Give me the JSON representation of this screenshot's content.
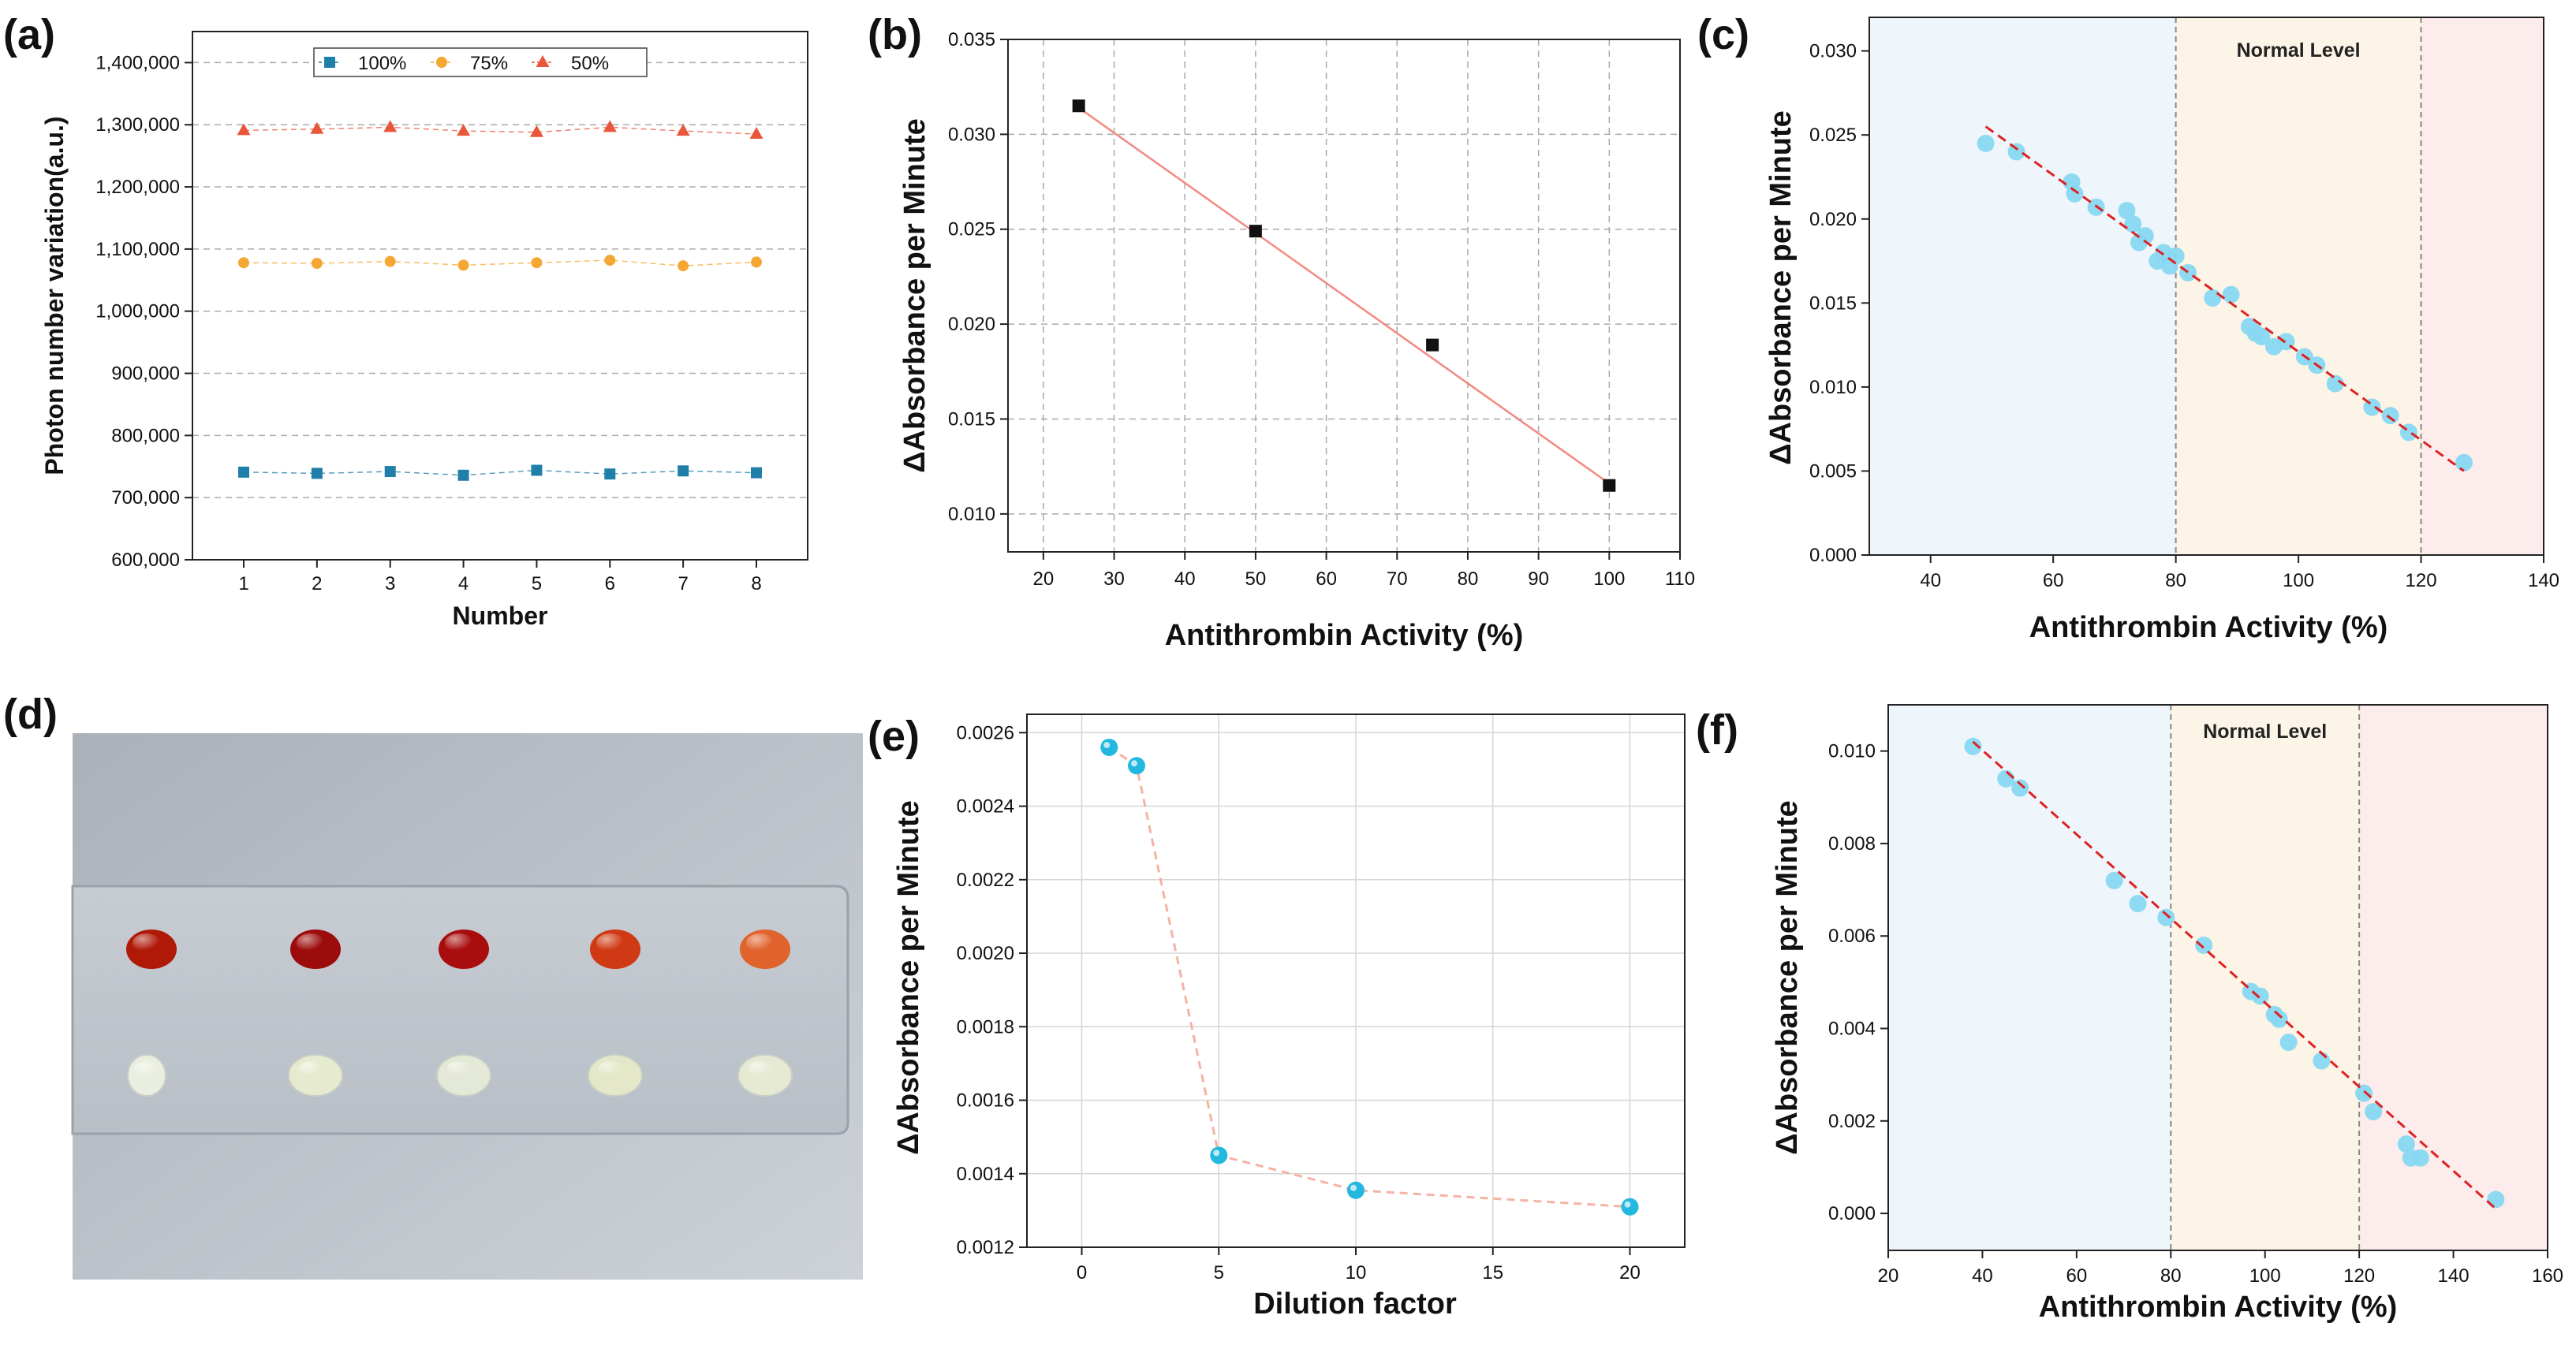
{
  "colors": {
    "blue": "#1f7fa8",
    "orange": "#f5a733",
    "red": "#e8573a",
    "cyan": "#88d8f2",
    "cyan_dark": "#22b8e0",
    "fit_red": "#dd2222",
    "zone_low": "#eef5fb",
    "zone_normal": "#fcf4e6",
    "zone_high": "#fcecec"
  },
  "chart_data": [
    {
      "panel": "(a)",
      "type": "line",
      "xlabel": "Number",
      "ylabel": "Photon number variation(a.u.)",
      "x": [
        1,
        2,
        3,
        4,
        5,
        6,
        7,
        8
      ],
      "xlim": [
        0.3,
        8.7
      ],
      "ylim": [
        600000,
        1450000
      ],
      "xticks": [
        1,
        2,
        3,
        4,
        5,
        6,
        7,
        8
      ],
      "yticks": [
        600000,
        700000,
        800000,
        900000,
        1000000,
        1100000,
        1200000,
        1300000,
        1400000
      ],
      "ytick_labels": [
        "600,000",
        "700,000",
        "800,000",
        "900,000",
        "1,000,000",
        "1,100,000",
        "1,200,000",
        "1,300,000",
        "1,400,000"
      ],
      "grid": true,
      "legend_position": "top-center",
      "series": [
        {
          "name": "100%",
          "marker": "square",
          "color": "#1f7fa8",
          "values": [
            741000,
            739000,
            742000,
            736000,
            744000,
            738000,
            743000,
            740000
          ]
        },
        {
          "name": "75%",
          "marker": "circle",
          "color": "#f5a733",
          "values": [
            1078000,
            1077000,
            1080000,
            1074000,
            1078000,
            1082000,
            1073000,
            1079000
          ]
        },
        {
          "name": "50%",
          "marker": "triangle",
          "color": "#e8573a",
          "values": [
            1291000,
            1293000,
            1296000,
            1290000,
            1288000,
            1296000,
            1290000,
            1285000
          ]
        }
      ]
    },
    {
      "panel": "(b)",
      "type": "scatter",
      "xlabel": "Antithrombin Activity (%)",
      "ylabel": "ΔAbsorbance per Minute",
      "xlim": [
        15,
        110
      ],
      "ylim": [
        0.008,
        0.035
      ],
      "xticks": [
        20,
        30,
        40,
        50,
        60,
        70,
        80,
        90,
        100,
        110
      ],
      "yticks": [
        0.01,
        0.015,
        0.02,
        0.025,
        0.03,
        0.035
      ],
      "ytick_labels": [
        "0.010",
        "0.015",
        "0.020",
        "0.025",
        "0.030",
        "0.035"
      ],
      "grid": true,
      "points": {
        "x": [
          25,
          50,
          75,
          100
        ],
        "y": [
          0.0315,
          0.0249,
          0.0189,
          0.0115
        ]
      },
      "fit_line": {
        "x": [
          25,
          100
        ],
        "y": [
          0.0314,
          0.0116
        ],
        "color": "#f08a80"
      }
    },
    {
      "panel": "(c)",
      "type": "scatter",
      "xlabel": "Antithrombin Activity (%)",
      "ylabel": "ΔAbsorbance per Minute",
      "xlim": [
        30,
        140
      ],
      "ylim": [
        0,
        0.032
      ],
      "xticks": [
        40,
        60,
        80,
        100,
        120,
        140
      ],
      "yticks": [
        0,
        0.005,
        0.01,
        0.015,
        0.02,
        0.025,
        0.03
      ],
      "ytick_labels": [
        "0.000",
        "0.005",
        "0.010",
        "0.015",
        "0.020",
        "0.025",
        "0.030"
      ],
      "zones": [
        80,
        120
      ],
      "annotation": "Normal Level",
      "points": {
        "x": [
          49,
          54,
          63,
          63.5,
          67,
          72,
          73,
          74,
          75,
          77,
          78,
          79,
          80,
          82,
          86,
          89,
          92,
          93,
          94,
          96,
          98,
          101,
          103,
          106,
          112,
          115,
          118,
          127
        ],
        "y": [
          0.0245,
          0.024,
          0.0222,
          0.0215,
          0.0207,
          0.0205,
          0.0197,
          0.0186,
          0.019,
          0.0175,
          0.018,
          0.0172,
          0.0178,
          0.0168,
          0.0153,
          0.0155,
          0.0136,
          0.0132,
          0.013,
          0.0124,
          0.0127,
          0.0118,
          0.0113,
          0.0102,
          0.0088,
          0.0083,
          0.0073,
          0.0055
        ]
      },
      "fit_line": {
        "x": [
          49,
          127
        ],
        "y": [
          0.0255,
          0.005
        ]
      }
    },
    {
      "panel": "(e)",
      "type": "line",
      "xlabel": "Dilution factor",
      "ylabel": "ΔAbsorbance per Minute",
      "xlim": [
        -2,
        22
      ],
      "ylim": [
        0.0012,
        0.00265
      ],
      "xticks": [
        0,
        5,
        10,
        15,
        20
      ],
      "yticks": [
        0.0012,
        0.0014,
        0.0016,
        0.0018,
        0.002,
        0.0022,
        0.0024,
        0.0026
      ],
      "ytick_labels": [
        "0.0012",
        "0.0014",
        "0.0016",
        "0.0018",
        "0.0020",
        "0.0022",
        "0.0024",
        "0.0026"
      ],
      "grid": true,
      "x": [
        1,
        2,
        5,
        10,
        20
      ],
      "values": [
        0.00256,
        0.00251,
        0.00145,
        0.001355,
        0.00131
      ]
    },
    {
      "panel": "(f)",
      "type": "scatter",
      "xlabel": "Antithrombin Activity (%)",
      "ylabel": "ΔAbsorbance per Minute",
      "xlim": [
        20,
        160
      ],
      "ylim": [
        -0.0008,
        0.011
      ],
      "xticks": [
        20,
        40,
        60,
        80,
        100,
        120,
        140,
        160
      ],
      "yticks": [
        0,
        0.002,
        0.004,
        0.006,
        0.008,
        0.01
      ],
      "ytick_labels": [
        "0.000",
        "0.002",
        "0.004",
        "0.006",
        "0.008",
        "0.010"
      ],
      "zones": [
        80,
        120
      ],
      "annotation": "Normal Level",
      "points": {
        "x": [
          38,
          45,
          48,
          68,
          73,
          79,
          87,
          97,
          99,
          102,
          103,
          105,
          112,
          121,
          123,
          130,
          131,
          133,
          149
        ],
        "y": [
          0.0101,
          0.0094,
          0.0092,
          0.0072,
          0.0067,
          0.0064,
          0.0058,
          0.0048,
          0.0047,
          0.0043,
          0.0042,
          0.0037,
          0.0033,
          0.0026,
          0.0022,
          0.0015,
          0.0012,
          0.0012,
          0.0003
        ]
      },
      "fit_line": {
        "x": [
          38,
          149
        ],
        "y": [
          0.0102,
          0.0001
        ]
      }
    }
  ],
  "panel_labels": {
    "a": "(a)",
    "b": "(b)",
    "c": "(c)",
    "d": "(d)",
    "e": "(e)",
    "f": "(f)"
  },
  "photo": {
    "red_drops": [
      "#b01808",
      "#9c0c0c",
      "#a80e0e",
      "#cf3a14",
      "#e0622c"
    ],
    "plasma_drops": [
      "#eaeee0",
      "#e6ebcf",
      "#e4e8d6",
      "#e4e8c8",
      "#e6ead2"
    ]
  }
}
